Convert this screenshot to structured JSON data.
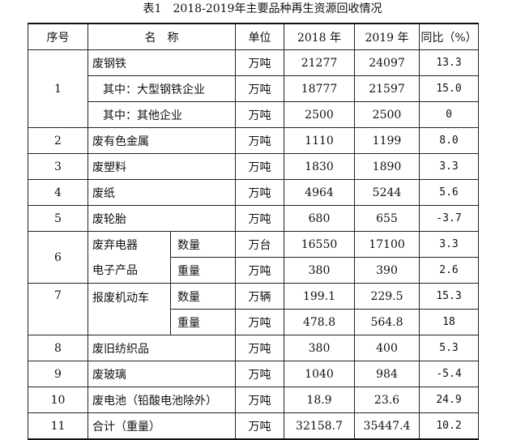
{
  "caption": "表1　2018-2019年主要品种再生资源回收情况",
  "headers": {
    "no": "序号",
    "name": "名　称",
    "unit": "单位",
    "y2018": "2018 年",
    "y2019": "2019 年",
    "yoy": "同比（%）"
  },
  "rows": {
    "r1": {
      "no": "1",
      "name": "废钢铁",
      "unit": "万吨",
      "y2018": "21277",
      "y2019": "24097",
      "yoy": "13.3"
    },
    "r1a": {
      "name": "其中：大型钢铁企业",
      "unit": "万吨",
      "y2018": "18777",
      "y2019": "21597",
      "yoy": "15.0"
    },
    "r1b": {
      "name": "其中：其他企业",
      "unit": "万吨",
      "y2018": "2500",
      "y2019": "2500",
      "yoy": "0"
    },
    "r2": {
      "no": "2",
      "name": "废有色金属",
      "unit": "万吨",
      "y2018": "1110",
      "y2019": "1199",
      "yoy": "8.0"
    },
    "r3": {
      "no": "3",
      "name": "废塑料",
      "unit": "万吨",
      "y2018": "1830",
      "y2019": "1890",
      "yoy": "3.3"
    },
    "r4": {
      "no": "4",
      "name": "废纸",
      "unit": "万吨",
      "y2018": "4964",
      "y2019": "5244",
      "yoy": "5.6"
    },
    "r5": {
      "no": "5",
      "name": "废轮胎",
      "unit": "万吨",
      "y2018": "680",
      "y2019": "655",
      "yoy": "-3.7"
    },
    "r6": {
      "no": "6",
      "name_line1": "废弃电器",
      "name_line2": "电子产品",
      "a": {
        "sub": "数量",
        "unit": "万台",
        "y2018": "16550",
        "y2019": "17100",
        "yoy": "3.3"
      },
      "b": {
        "sub": "重量",
        "unit": "万吨",
        "y2018": "380",
        "y2019": "390",
        "yoy": "2.6"
      }
    },
    "r7": {
      "no": "7",
      "name": "报废机动车",
      "a": {
        "sub": "数量",
        "unit": "万辆",
        "y2018": "199.1",
        "y2019": "229.5",
        "yoy": "15.3"
      },
      "b": {
        "sub": "重量",
        "unit": "万吨",
        "y2018": "478.8",
        "y2019": "564.8",
        "yoy": "18"
      }
    },
    "r8": {
      "no": "8",
      "name": "废旧纺织品",
      "unit": "万吨",
      "y2018": "380",
      "y2019": "400",
      "yoy": "5.3"
    },
    "r9": {
      "no": "9",
      "name": "废玻璃",
      "unit": "万吨",
      "y2018": "1040",
      "y2019": "984",
      "yoy": "-5.4"
    },
    "r10": {
      "no": "10",
      "name": "废电池（铅酸电池除外）",
      "unit": "万吨",
      "y2018": "18.9",
      "y2019": "23.6",
      "yoy": "24.9"
    },
    "r11": {
      "no": "11",
      "name": "合计（重量）",
      "unit": "万吨",
      "y2018": "32158.7",
      "y2019": "35447.4",
      "yoy": "10.2"
    }
  }
}
